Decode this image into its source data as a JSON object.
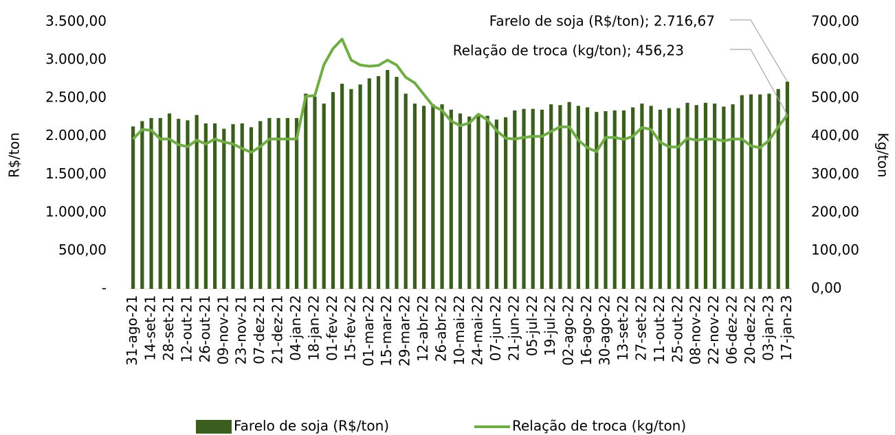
{
  "chart_data": {
    "type": "bar",
    "y_label": "R$/ton",
    "y2_label": "Kg/ton",
    "categories": [
      "31-ago-21",
      null,
      "14-set-21",
      null,
      "28-set-21",
      null,
      "12-out-21",
      null,
      "26-out-21",
      null,
      "09-nov-21",
      null,
      "23-nov-21",
      null,
      "07-dez-21",
      null,
      "21-dez-21",
      null,
      "04-jan-22",
      null,
      "18-jan-22",
      null,
      "01-fev-22",
      null,
      "15-fev-22",
      null,
      "01-mar-22",
      null,
      "15-mar-22",
      null,
      "29-mar-22",
      null,
      "12-abr-22",
      null,
      "26-abr-22",
      null,
      "10-mai-22",
      null,
      "24-mai-22",
      null,
      "07-jun-22",
      null,
      "21-jun-22",
      null,
      "05-jul-22",
      null,
      "19-jul-22",
      null,
      "02-ago-22",
      null,
      "16-ago-22",
      null,
      "30-ago-22",
      null,
      "13-set-22",
      null,
      "27-set-22",
      null,
      "11-out-22",
      null,
      "25-out-22",
      null,
      "08-nov-22",
      null,
      "22-nov-22",
      null,
      "06-dez-22",
      null,
      "20-dez-22",
      null,
      "03-jan-23",
      null,
      "17-jan-23"
    ],
    "series": [
      {
        "name": "Farelo de soja (R$/ton)",
        "type": "bar",
        "color": "#3b5e1f",
        "values": [
          2130,
          2200,
          2240,
          2240,
          2300,
          2230,
          2210,
          2280,
          2170,
          2170,
          2100,
          2160,
          2170,
          2120,
          2200,
          2240,
          2240,
          2240,
          2240,
          2560,
          2520,
          2430,
          2580,
          2690,
          2620,
          2680,
          2760,
          2790,
          2870,
          2780,
          2560,
          2430,
          2400,
          2420,
          2420,
          2350,
          2300,
          2260,
          2290,
          2270,
          2220,
          2250,
          2340,
          2360,
          2360,
          2350,
          2420,
          2410,
          2450,
          2400,
          2380,
          2320,
          2330,
          2340,
          2340,
          2380,
          2430,
          2400,
          2350,
          2370,
          2370,
          2440,
          2410,
          2440,
          2430,
          2390,
          2420,
          2540,
          2550,
          2550,
          2560,
          2620,
          2716.67
        ]
      },
      {
        "name": "Relação de troca (kg/ton)",
        "type": "line",
        "axis": "y2",
        "color": "#70ad47",
        "values": [
          393,
          418,
          416,
          393,
          393,
          378,
          373,
          390,
          380,
          393,
          385,
          380,
          368,
          358,
          373,
          393,
          393,
          393,
          393,
          505,
          507,
          588,
          630,
          655,
          600,
          587,
          584,
          586,
          600,
          587,
          555,
          540,
          510,
          480,
          468,
          440,
          428,
          435,
          458,
          443,
          415,
          395,
          393,
          397,
          400,
          400,
          413,
          425,
          425,
          390,
          370,
          360,
          397,
          397,
          392,
          400,
          423,
          418,
          385,
          372,
          372,
          395,
          390,
          393,
          393,
          388,
          393,
          393,
          375,
          370,
          390,
          425,
          456.23
        ]
      }
    ],
    "annotations": [
      "Farelo de soja (R$/ton); 2.716,67",
      "Relação de troca (kg/ton); 456,23"
    ],
    "ylim": [
      0,
      3500
    ],
    "yticks": [
      {
        "value": 0,
        "label": "-"
      },
      {
        "value": 500,
        "label": "500,00"
      },
      {
        "value": 1000,
        "label": "1.000,00"
      },
      {
        "value": 1500,
        "label": "1.500,00"
      },
      {
        "value": 2000,
        "label": "2.000,00"
      },
      {
        "value": 2500,
        "label": "2.500,00"
      },
      {
        "value": 3000,
        "label": "3.000,00"
      },
      {
        "value": 3500,
        "label": "3.500,00"
      }
    ],
    "y2lim": [
      0,
      700
    ],
    "y2ticks": [
      {
        "value": 0,
        "label": "0,00"
      },
      {
        "value": 100,
        "label": "100,00"
      },
      {
        "value": 200,
        "label": "200,00"
      },
      {
        "value": 300,
        "label": "300,00"
      },
      {
        "value": 400,
        "label": "400,00"
      },
      {
        "value": 500,
        "label": "500,00"
      },
      {
        "value": 600,
        "label": "600,00"
      },
      {
        "value": 700,
        "label": "700,00"
      }
    ],
    "grid": false,
    "legend": "bottom"
  }
}
